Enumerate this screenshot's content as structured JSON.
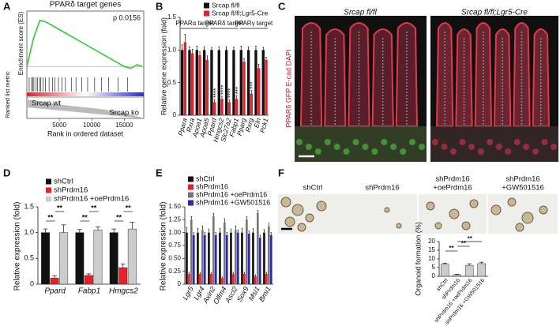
{
  "figure": {
    "panel_labels": [
      "A",
      "B",
      "C",
      "D",
      "E",
      "F"
    ],
    "panel_c": {
      "images": [
        "Srcap fl/fl",
        "Srcap fl/fl;Lgr5-Cre"
      ],
      "stain": "PPARδ GFP E-cad DAPI"
    },
    "panel_f_images": [
      [
        "shCtrl"
      ],
      [
        "shPrdm16"
      ],
      [
        "shPrdm16",
        "+oePrdm16"
      ],
      [
        "shPrdm16",
        "+GW501516"
      ]
    ]
  },
  "chart_data": [
    {
      "type": "line",
      "title": "PPARδ target genes",
      "annotation": "p 0.0156",
      "ylabel": "Enrichment score (ES)",
      "ylabel2": "Ranked list metric",
      "xlabel": "Rank in ordered dataset",
      "group_labels": [
        "Srcap wt",
        "Srcap ko"
      ],
      "x": [
        0,
        1000,
        2000,
        3000,
        5000,
        8000,
        10000,
        12000,
        14000,
        15000,
        16000,
        17000,
        17800
      ],
      "values": [
        0,
        0.3,
        0.5,
        0.48,
        0.4,
        0.28,
        0.2,
        0.12,
        0.04,
        0,
        -0.02,
        0.02,
        0
      ],
      "color": "#22cc22",
      "xlim": [
        0,
        18000
      ],
      "xticks": [
        5000,
        10000,
        15000
      ],
      "ylim": [
        -0.1,
        0.6
      ]
    },
    {
      "type": "bar",
      "ylabel": "Relative gene expression (fold)",
      "categories": [
        "Ppara",
        "Rxra",
        "Apoa1",
        "Apoa5",
        "Ppard",
        "Hmgcs2",
        "Slc27a2",
        "Fabp1",
        "Pparg",
        "Rxrg",
        "Eln",
        "Pck1"
      ],
      "series": [
        {
          "name": "Srcap fl/fl",
          "color": "#111111",
          "values": [
            1,
            1,
            1,
            1,
            1,
            1,
            1,
            1,
            1,
            1,
            1,
            1
          ],
          "errors": [
            0.08,
            0.05,
            0.06,
            0.05,
            0.04,
            0.05,
            0.05,
            0.04,
            0.06,
            0.05,
            0.06,
            0.04
          ]
        },
        {
          "name": "Srcap fl/fl;Lgr5-Cre",
          "color": "#e8202a",
          "values": [
            1.12,
            0.95,
            0.92,
            0.85,
            0.2,
            0.25,
            0.2,
            0.25,
            0.82,
            0.33,
            0.72,
            0.85
          ],
          "errors": [
            0.12,
            0.06,
            0.05,
            0.06,
            0.04,
            0.04,
            0.04,
            0.05,
            0.05,
            0.05,
            0.06,
            0.04
          ]
        }
      ],
      "group_headers": [
        {
          "text": "PPARα target",
          "from": "Ppara",
          "to": "Apoa5"
        },
        {
          "text": "PPARδ target",
          "from": "Ppard",
          "to": "Fabp1"
        },
        {
          "text": "PPARγ target",
          "from": "Pparg",
          "to": "Pck1"
        }
      ],
      "annotations": [
        {
          "text": "****",
          "category": "Ppard"
        },
        {
          "text": "****",
          "category": "Hmgcs2"
        },
        {
          "text": "****",
          "category": "Slc27a2"
        },
        {
          "text": "***",
          "category": "Fabp1"
        },
        {
          "text": "***",
          "category": "Rxrg"
        }
      ],
      "ylim": [
        0,
        1.5
      ],
      "yticks": [
        0,
        {
          "value": 0.5,
          "label": "0.5"
        },
        {
          "value": 1,
          "label": "1.0"
        },
        {
          "value": 1.5,
          "label": "1.5"
        }
      ]
    },
    {
      "type": "bar",
      "ylabel": "Relative expression (fold)",
      "categories": [
        "Ppard",
        "Fabp1",
        "Hmgcs2"
      ],
      "series": [
        {
          "name": "shCtrl",
          "color": "#111111",
          "values": [
            1,
            1,
            1
          ],
          "errors": [
            0.07,
            0.06,
            0.07
          ]
        },
        {
          "name": "shPrdm16",
          "color": "#e8202a",
          "values": [
            0.12,
            0.17,
            0.32
          ],
          "errors": [
            0.04,
            0.03,
            0.07
          ]
        },
        {
          "name": "shPrdm16 +oePrdm16",
          "color": "#cccccc",
          "values": [
            1,
            1.05,
            1.07
          ],
          "errors": [
            0.15,
            0.06,
            0.13
          ]
        }
      ],
      "annotations": [
        {
          "text": "**",
          "category": "Ppard",
          "between": [
            "shCtrl",
            "shPrdm16"
          ]
        },
        {
          "text": "**",
          "category": "Ppard",
          "between": [
            "shPrdm16",
            "shPrdm16 +oePrdm16"
          ]
        },
        {
          "text": "**",
          "category": "Fabp1",
          "between": [
            "shCtrl",
            "shPrdm16"
          ]
        },
        {
          "text": "**",
          "category": "Fabp1",
          "between": [
            "shPrdm16",
            "shPrdm16 +oePrdm16"
          ]
        },
        {
          "text": "**",
          "category": "Hmgcs2",
          "between": [
            "shCtrl",
            "shPrdm16"
          ]
        },
        {
          "text": "**",
          "category": "Hmgcs2",
          "between": [
            "shPrdm16",
            "shPrdm16 +oePrdm16"
          ]
        }
      ],
      "ylim": [
        0,
        1.5
      ],
      "yticks": [
        0,
        {
          "value": 0.5,
          "label": "0.5"
        },
        {
          "value": 1,
          "label": "1.0"
        },
        {
          "value": 1.5,
          "label": "1.5"
        }
      ]
    },
    {
      "type": "bar",
      "ylabel": "Relative expression (fold)",
      "categories": [
        "Lgr5",
        "Lgr4",
        "Axin2",
        "Olfm4",
        "Ascl2",
        "Sox9",
        "Msi1",
        "Bmi1"
      ],
      "series": [
        {
          "name": "shCtrl",
          "color": "#111111",
          "values": [
            1,
            1,
            1,
            1,
            1,
            1,
            1,
            1
          ],
          "errors": [
            0.1,
            0.08,
            0.07,
            0.08,
            0.07,
            0.08,
            0.08,
            0.06
          ]
        },
        {
          "name": "shPrdm16",
          "color": "#e8202a",
          "values": [
            0.2,
            0.2,
            0.2,
            0.12,
            0.2,
            0.2,
            0.15,
            0.2
          ],
          "errors": [
            0.03,
            0.03,
            0.03,
            0.02,
            0.03,
            0.03,
            0.03,
            0.03
          ]
        },
        {
          "name": "shPrdm16 +oePrdm16",
          "color": "#777777",
          "values": [
            1.25,
            1.05,
            1.32,
            1.2,
            1.05,
            1.25,
            1.38,
            1.12
          ],
          "errors": [
            0.06,
            0.08,
            0.05,
            0.07,
            0.08,
            0.06,
            0.05,
            0.06
          ]
        },
        {
          "name": "shPrdm16 +GW501516",
          "color": "#2a2aa8",
          "values": [
            0.95,
            0.95,
            0.95,
            0.95,
            1,
            0.98,
            0.9,
            0.95
          ],
          "errors": [
            0.05,
            0.05,
            0.05,
            0.05,
            0.05,
            0.05,
            0.05,
            0.05
          ]
        }
      ],
      "ylim": [
        0,
        1.5
      ],
      "yticks": [
        0,
        0.25,
        {
          "value": 0.5,
          "label": "0.50"
        },
        {
          "value": 0.75,
          "label": "0.75"
        },
        {
          "value": 1,
          "label": "1.00"
        },
        {
          "value": 1.25,
          "label": "1.25"
        },
        {
          "value": 1.5,
          "label": "1.50"
        }
      ]
    },
    {
      "type": "bar",
      "ylabel": "Organoid formation (%)",
      "categories": [
        "shCtrl",
        "shPrdm16",
        "shPrdm16 +oePrdm16",
        "shPrdm16 +GW501516"
      ],
      "series": [
        {
          "color": "#cccccc",
          "values": [
            7,
            0.9,
            6.3,
            7.3
          ],
          "errors": [
            0.6,
            0.3,
            0.9,
            0.8
          ]
        }
      ],
      "annotations": [
        {
          "text": "**",
          "between": [
            "shCtrl",
            "shPrdm16"
          ]
        },
        {
          "text": "**",
          "between": [
            "shPrdm16",
            "shPrdm16 +oePrdm16"
          ]
        },
        {
          "text": "**",
          "between": [
            "shPrdm16",
            "shPrdm16 +GW501516"
          ]
        }
      ],
      "ylim": [
        0,
        20
      ],
      "yticks": [
        0,
        5,
        10,
        15,
        20
      ]
    }
  ]
}
